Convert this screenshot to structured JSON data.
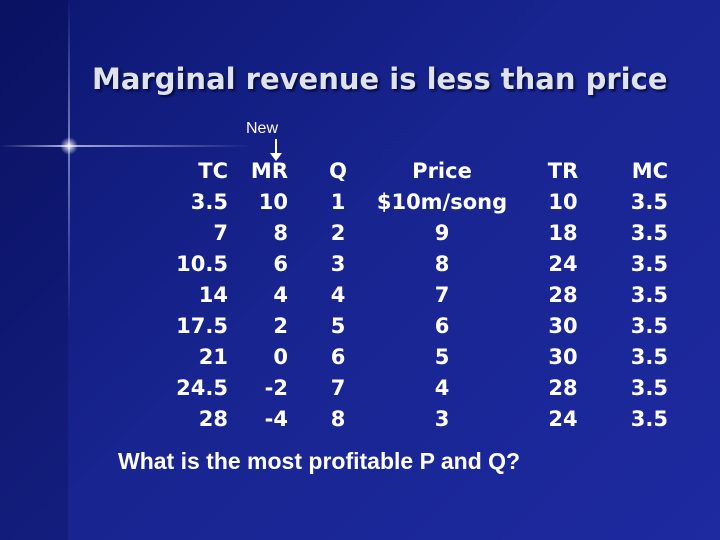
{
  "slide": {
    "title": "Marginal revenue is less than price",
    "annotation": "New",
    "question": "What is  the most profitable P and Q?"
  },
  "table": {
    "headers": [
      "TC",
      "MR",
      "Q",
      "Price",
      "TR",
      "MC"
    ],
    "rows": [
      [
        "3.5",
        "10",
        "1",
        "$10m/song",
        "10",
        "3.5"
      ],
      [
        "7",
        "8",
        "2",
        "9",
        "18",
        "3.5"
      ],
      [
        "10.5",
        "6",
        "3",
        "8",
        "24",
        "3.5"
      ],
      [
        "14",
        "4",
        "4",
        "7",
        "28",
        "3.5"
      ],
      [
        "17.5",
        "2",
        "5",
        "6",
        "30",
        "3.5"
      ],
      [
        "21",
        "0",
        "6",
        "5",
        "30",
        "3.5"
      ],
      [
        "24.5",
        "-2",
        "7",
        "4",
        "28",
        "3.5"
      ],
      [
        "28",
        "-4",
        "8",
        "3",
        "24",
        "3.5"
      ]
    ]
  }
}
